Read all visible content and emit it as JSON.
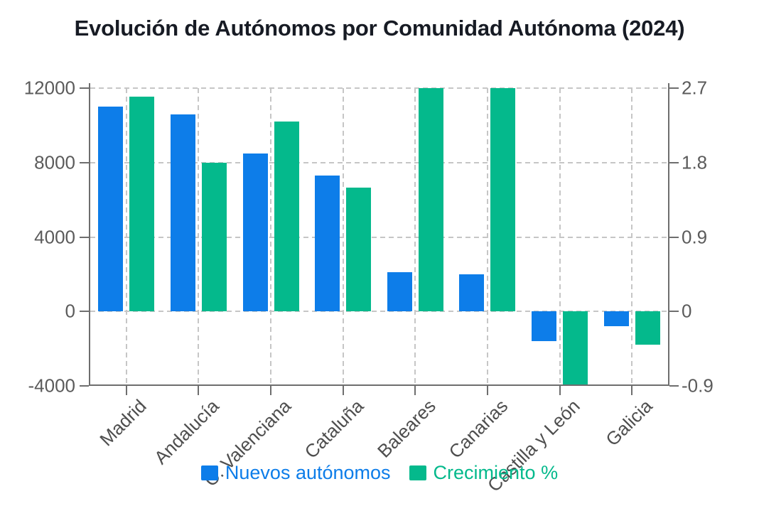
{
  "chart_data": {
    "type": "bar",
    "title": "Evolución de Autónomos por Comunidad Autónoma (2024)",
    "categories": [
      "Madrid",
      "Andalucía",
      "C. Valenciana",
      "Cataluña",
      "Baleares",
      "Canarias",
      "Castilla y León",
      "Galicia"
    ],
    "series": [
      {
        "name": "Nuevos autónomos",
        "axis": "left",
        "color": "#0d7de9",
        "values": [
          11000,
          10600,
          8500,
          7300,
          2100,
          2000,
          -1600,
          -800
        ]
      },
      {
        "name": "Crecimiento %",
        "axis": "right",
        "color": "#04b98c",
        "values": [
          2.6,
          1.8,
          2.3,
          1.5,
          2.7,
          2.7,
          -0.9,
          -0.4
        ]
      }
    ],
    "left_axis": {
      "min": -4000,
      "max": 12000,
      "ticks": [
        {
          "value": 12000,
          "label": "12000"
        },
        {
          "value": 8000,
          "label": "8000"
        },
        {
          "value": 4000,
          "label": "4000"
        },
        {
          "value": 0,
          "label": "0"
        },
        {
          "value": -4000,
          "label": "-4000"
        }
      ]
    },
    "right_axis": {
      "min": -0.9,
      "max": 2.7,
      "ticks": [
        {
          "value": 2.7,
          "label": "2.7"
        },
        {
          "value": 1.8,
          "label": "1.8"
        },
        {
          "value": 0.9,
          "label": "0.9"
        },
        {
          "value": 0,
          "label": "0"
        },
        {
          "value": -0.9,
          "label": "-0.9"
        }
      ]
    },
    "grid": true,
    "legend_position": "bottom",
    "colors": {
      "axis": "#6e6e6e",
      "grid": "#c6c6c6",
      "tick_text": "#5b5b5b",
      "category_text": "#4e4e4e",
      "title_text": "#171b24"
    }
  }
}
